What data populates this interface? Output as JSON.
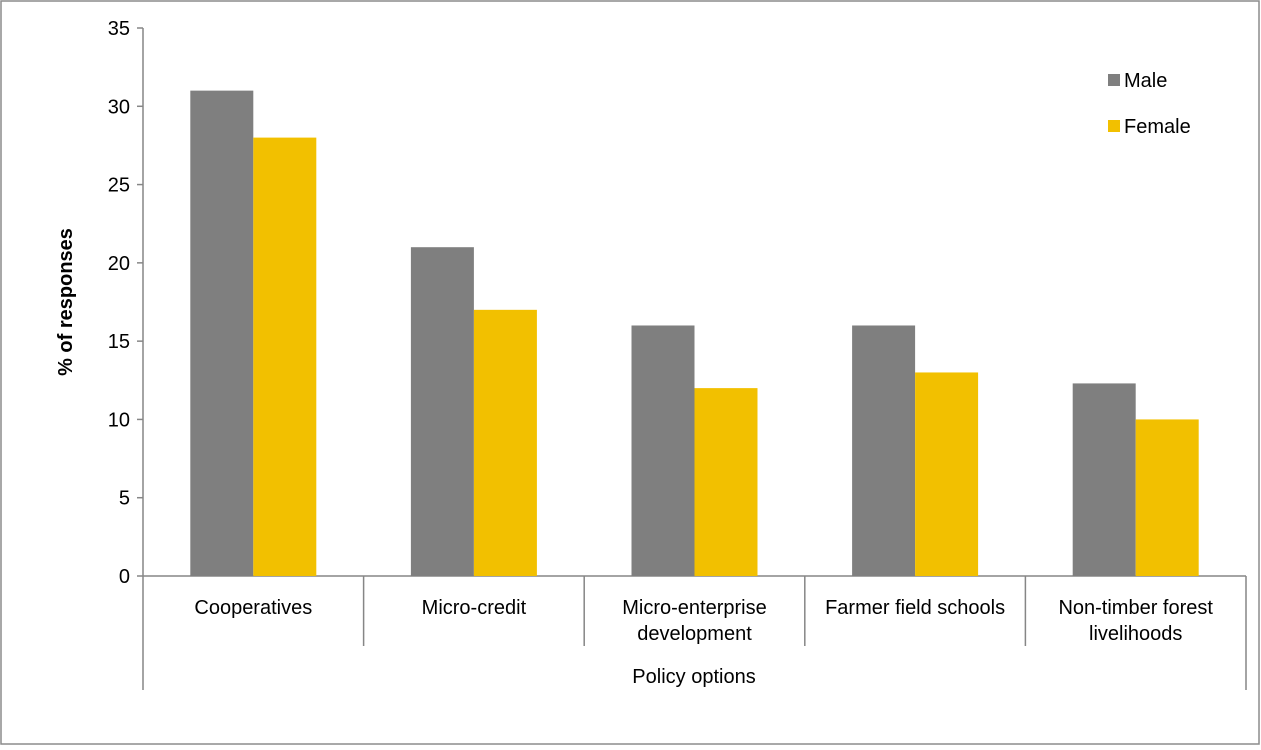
{
  "chart_data": {
    "type": "bar",
    "title": "",
    "xlabel": "Policy options",
    "ylabel": "% of responses",
    "ylim": [
      0,
      35
    ],
    "yticks": [
      0,
      5,
      10,
      15,
      20,
      25,
      30,
      35
    ],
    "categories": [
      [
        "Cooperatives"
      ],
      [
        "Micro-credit"
      ],
      [
        "Micro-enterprise",
        "development"
      ],
      [
        "Farmer field schools"
      ],
      [
        "Non-timber forest",
        "livelihoods"
      ]
    ],
    "series": [
      {
        "name": "Male",
        "color": "#7f7f7f",
        "values": [
          31,
          21,
          16,
          16,
          12.3
        ]
      },
      {
        "name": "Female",
        "color": "#f2c000",
        "values": [
          28,
          17,
          12,
          13,
          10
        ]
      }
    ],
    "grid": false,
    "legend": "top-right"
  }
}
